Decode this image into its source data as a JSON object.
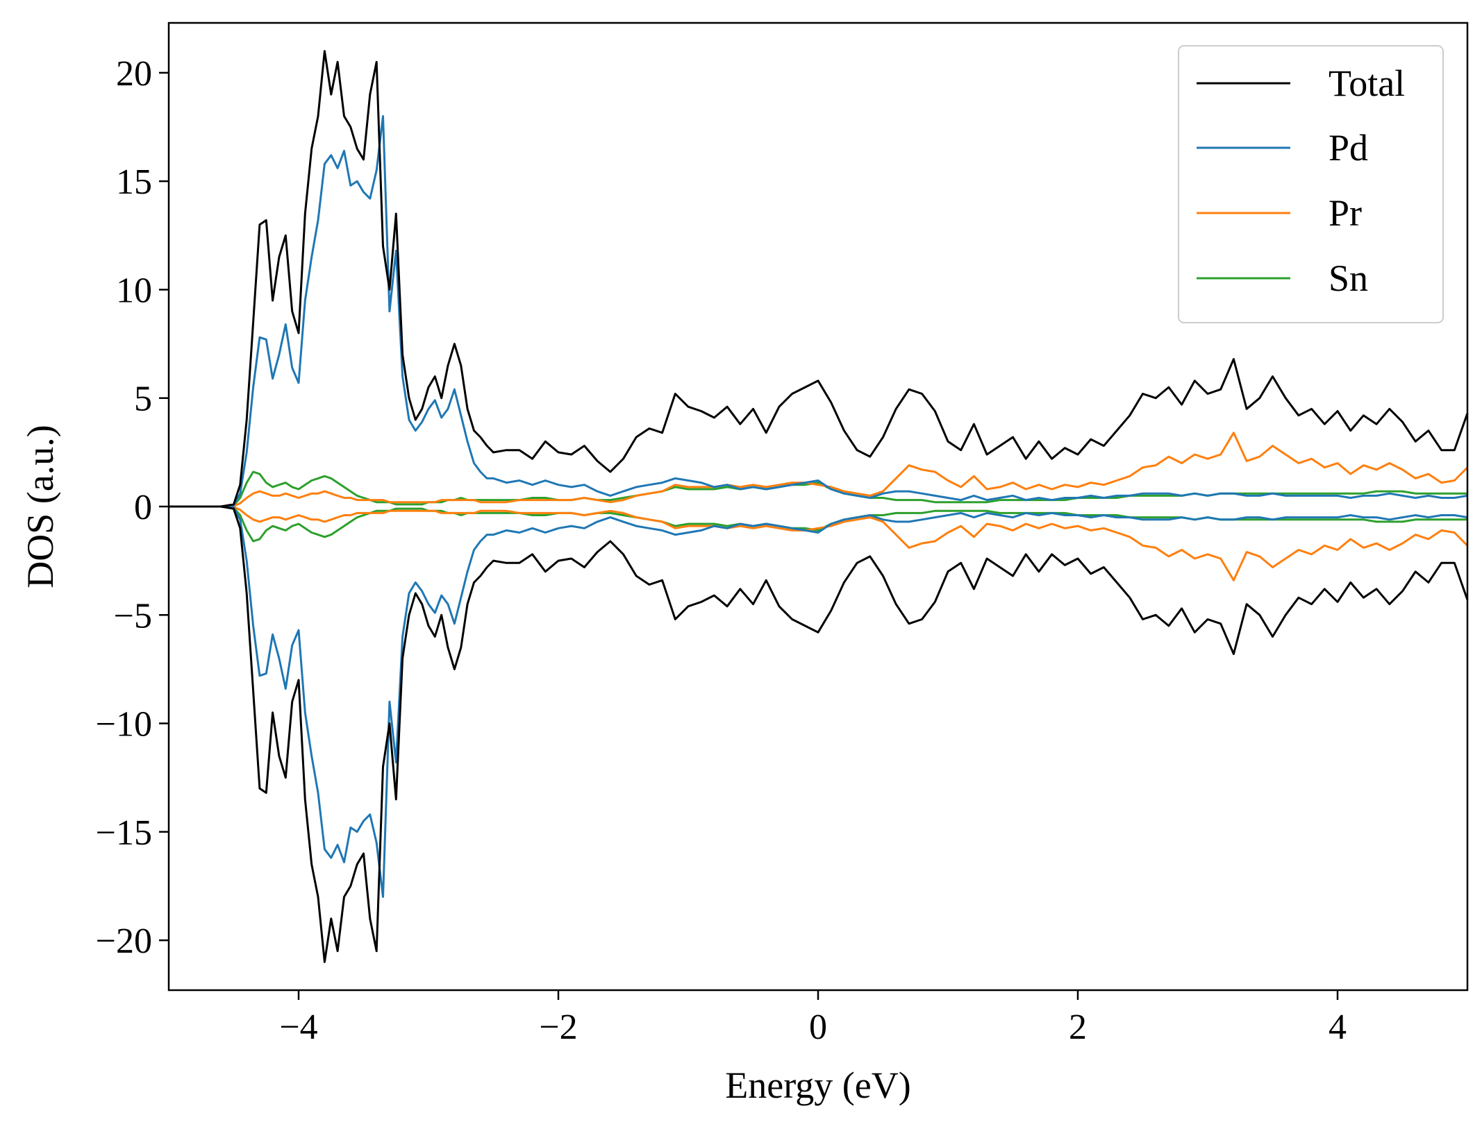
{
  "chart_data": {
    "type": "line",
    "title": "",
    "xlabel": "Energy (eV)",
    "ylabel": "DOS (a.u.)",
    "xlim": [
      -5,
      5
    ],
    "ylim": [
      -22.3,
      22.3
    ],
    "xticks": [
      -4,
      -2,
      0,
      2,
      4
    ],
    "yticks": [
      -20,
      -15,
      -10,
      -5,
      0,
      5,
      10,
      15,
      20
    ],
    "xtick_labels": [
      "−4",
      "−2",
      "0",
      "2",
      "4"
    ],
    "ytick_labels": [
      "−20",
      "−15",
      "−10",
      "−5",
      "0",
      "5",
      "10",
      "15",
      "20"
    ],
    "grid": false,
    "legend_position": "top-right",
    "symmetric_spin": true,
    "x": [
      -5.0,
      -4.6,
      -4.5,
      -4.45,
      -4.4,
      -4.35,
      -4.3,
      -4.25,
      -4.2,
      -4.15,
      -4.1,
      -4.05,
      -4.0,
      -3.95,
      -3.9,
      -3.85,
      -3.8,
      -3.75,
      -3.7,
      -3.65,
      -3.6,
      -3.55,
      -3.5,
      -3.45,
      -3.4,
      -3.35,
      -3.3,
      -3.25,
      -3.2,
      -3.15,
      -3.1,
      -3.05,
      -3.0,
      -2.95,
      -2.9,
      -2.85,
      -2.8,
      -2.75,
      -2.7,
      -2.65,
      -2.6,
      -2.55,
      -2.5,
      -2.4,
      -2.3,
      -2.2,
      -2.1,
      -2.0,
      -1.9,
      -1.8,
      -1.7,
      -1.6,
      -1.5,
      -1.4,
      -1.3,
      -1.2,
      -1.1,
      -1.0,
      -0.9,
      -0.8,
      -0.7,
      -0.6,
      -0.5,
      -0.4,
      -0.3,
      -0.2,
      -0.1,
      0.0,
      0.1,
      0.2,
      0.3,
      0.4,
      0.5,
      0.6,
      0.7,
      0.8,
      0.9,
      1.0,
      1.1,
      1.2,
      1.3,
      1.4,
      1.5,
      1.6,
      1.7,
      1.8,
      1.9,
      2.0,
      2.1,
      2.2,
      2.3,
      2.4,
      2.5,
      2.6,
      2.7,
      2.8,
      2.9,
      3.0,
      3.1,
      3.2,
      3.3,
      3.4,
      3.5,
      3.6,
      3.7,
      3.8,
      3.9,
      4.0,
      4.1,
      4.2,
      4.3,
      4.4,
      4.5,
      4.6,
      4.7,
      4.8,
      4.9,
      5.0
    ],
    "series": [
      {
        "name": "Total",
        "color": "#000000",
        "values": [
          0,
          0,
          0.1,
          1.0,
          4.0,
          8.5,
          13.0,
          13.2,
          9.5,
          11.5,
          12.5,
          9.0,
          8.0,
          13.5,
          16.5,
          18.0,
          21.0,
          19.0,
          20.5,
          18.0,
          17.5,
          16.5,
          16.0,
          19.0,
          20.5,
          12.0,
          10.0,
          13.5,
          7.0,
          5.0,
          4.0,
          4.5,
          5.5,
          6.0,
          5.0,
          6.5,
          7.5,
          6.5,
          4.5,
          3.5,
          3.2,
          2.8,
          2.5,
          2.6,
          2.6,
          2.2,
          3.0,
          2.5,
          2.4,
          2.8,
          2.1,
          1.6,
          2.2,
          3.2,
          3.6,
          3.4,
          5.2,
          4.6,
          4.4,
          4.1,
          4.6,
          3.8,
          4.5,
          3.4,
          4.6,
          5.2,
          5.5,
          5.8,
          4.8,
          3.5,
          2.6,
          2.3,
          3.2,
          4.5,
          5.4,
          5.2,
          4.4,
          3.0,
          2.6,
          3.8,
          2.4,
          2.8,
          3.2,
          2.2,
          3.0,
          2.2,
          2.7,
          2.4,
          3.1,
          2.8,
          3.5,
          4.2,
          5.2,
          5.0,
          5.5,
          4.7,
          5.8,
          5.2,
          5.4,
          6.8,
          4.5,
          5.0,
          6.0,
          5.0,
          4.2,
          4.5,
          3.8,
          4.4,
          3.5,
          4.2,
          3.8,
          4.5,
          3.9,
          3.0,
          3.5,
          2.6,
          2.6,
          4.3
        ]
      },
      {
        "name": "Pd",
        "color": "#1f77b4",
        "values": [
          0,
          0,
          0.05,
          0.6,
          2.5,
          5.5,
          7.8,
          7.7,
          5.9,
          7.0,
          8.4,
          6.4,
          5.7,
          9.5,
          11.5,
          13.2,
          15.8,
          16.2,
          15.6,
          16.4,
          14.8,
          15.0,
          14.5,
          14.2,
          15.5,
          18.0,
          9.0,
          11.8,
          6.0,
          4.0,
          3.5,
          3.9,
          4.5,
          4.9,
          4.1,
          4.5,
          5.4,
          4.2,
          3.0,
          2.0,
          1.6,
          1.3,
          1.3,
          1.1,
          1.2,
          1.0,
          1.2,
          1.0,
          0.9,
          1.0,
          0.7,
          0.5,
          0.7,
          0.9,
          1.0,
          1.1,
          1.3,
          1.2,
          1.1,
          0.9,
          1.0,
          0.8,
          0.9,
          0.8,
          0.9,
          1.0,
          1.1,
          1.2,
          0.8,
          0.6,
          0.5,
          0.4,
          0.6,
          0.7,
          0.7,
          0.6,
          0.5,
          0.4,
          0.3,
          0.5,
          0.3,
          0.4,
          0.5,
          0.3,
          0.4,
          0.3,
          0.4,
          0.4,
          0.5,
          0.4,
          0.5,
          0.5,
          0.6,
          0.6,
          0.6,
          0.5,
          0.6,
          0.5,
          0.6,
          0.6,
          0.5,
          0.5,
          0.6,
          0.5,
          0.5,
          0.5,
          0.5,
          0.5,
          0.4,
          0.5,
          0.5,
          0.6,
          0.5,
          0.4,
          0.5,
          0.4,
          0.4,
          0.5
        ]
      },
      {
        "name": "Pr",
        "color": "#ff7f0e",
        "values": [
          0,
          0,
          0.02,
          0.15,
          0.4,
          0.6,
          0.7,
          0.6,
          0.5,
          0.5,
          0.6,
          0.5,
          0.4,
          0.5,
          0.6,
          0.6,
          0.7,
          0.6,
          0.5,
          0.4,
          0.4,
          0.3,
          0.3,
          0.3,
          0.3,
          0.3,
          0.2,
          0.2,
          0.2,
          0.2,
          0.2,
          0.2,
          0.2,
          0.2,
          0.3,
          0.3,
          0.3,
          0.3,
          0.3,
          0.3,
          0.2,
          0.2,
          0.2,
          0.2,
          0.3,
          0.3,
          0.3,
          0.3,
          0.3,
          0.4,
          0.3,
          0.2,
          0.3,
          0.5,
          0.6,
          0.7,
          1.0,
          0.9,
          0.9,
          0.9,
          1.0,
          0.9,
          1.0,
          0.9,
          1.0,
          1.1,
          1.1,
          1.0,
          0.9,
          0.7,
          0.6,
          0.5,
          0.7,
          1.3,
          1.9,
          1.7,
          1.6,
          1.2,
          0.9,
          1.4,
          0.8,
          0.9,
          1.1,
          0.8,
          1.0,
          0.8,
          1.0,
          0.9,
          1.1,
          1.0,
          1.2,
          1.4,
          1.8,
          1.9,
          2.3,
          2.0,
          2.4,
          2.2,
          2.4,
          3.4,
          2.1,
          2.3,
          2.8,
          2.4,
          2.0,
          2.2,
          1.8,
          2.0,
          1.5,
          1.9,
          1.7,
          2.0,
          1.7,
          1.3,
          1.5,
          1.1,
          1.2,
          1.8
        ]
      },
      {
        "name": "Sn",
        "color": "#2ca02c",
        "values": [
          0,
          0,
          0.05,
          0.4,
          1.1,
          1.6,
          1.5,
          1.1,
          0.9,
          1.0,
          1.1,
          0.9,
          0.8,
          1.0,
          1.2,
          1.3,
          1.4,
          1.3,
          1.1,
          0.9,
          0.7,
          0.5,
          0.4,
          0.3,
          0.2,
          0.2,
          0.2,
          0.1,
          0.1,
          0.1,
          0.1,
          0.1,
          0.2,
          0.2,
          0.2,
          0.3,
          0.3,
          0.4,
          0.3,
          0.3,
          0.3,
          0.3,
          0.3,
          0.3,
          0.3,
          0.4,
          0.4,
          0.3,
          0.3,
          0.4,
          0.3,
          0.3,
          0.4,
          0.5,
          0.6,
          0.7,
          0.9,
          0.8,
          0.8,
          0.8,
          0.9,
          0.8,
          0.9,
          0.8,
          0.9,
          1.0,
          1.0,
          1.1,
          0.8,
          0.6,
          0.5,
          0.4,
          0.4,
          0.3,
          0.3,
          0.3,
          0.2,
          0.2,
          0.2,
          0.2,
          0.2,
          0.3,
          0.3,
          0.3,
          0.3,
          0.3,
          0.3,
          0.4,
          0.4,
          0.4,
          0.4,
          0.5,
          0.5,
          0.5,
          0.5,
          0.5,
          0.6,
          0.5,
          0.6,
          0.6,
          0.6,
          0.6,
          0.6,
          0.6,
          0.6,
          0.6,
          0.6,
          0.6,
          0.6,
          0.6,
          0.7,
          0.7,
          0.7,
          0.6,
          0.6,
          0.6,
          0.6,
          0.6
        ]
      }
    ]
  }
}
